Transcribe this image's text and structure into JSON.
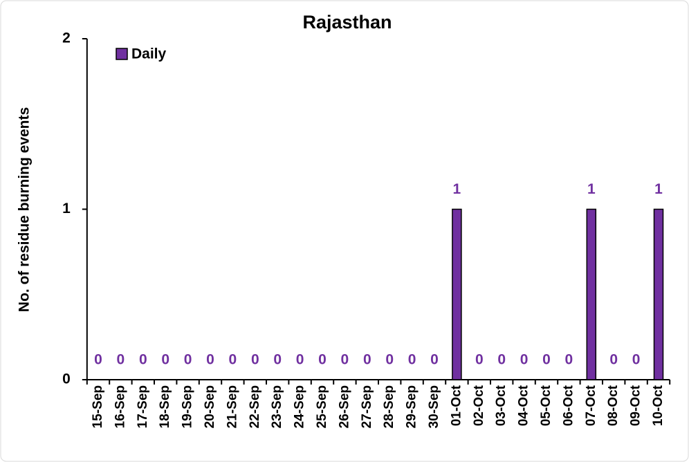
{
  "chart_data": {
    "type": "bar",
    "title": "Rajasthan",
    "y_label": "No. of residue burning events",
    "categories": [
      "15-Sep",
      "16-Sep",
      "17-Sep",
      "18-Sep",
      "19-Sep",
      "20-Sep",
      "21-Sep",
      "22-Sep",
      "23-Sep",
      "24-Sep",
      "25-Sep",
      "26-Sep",
      "27-Sep",
      "28-Sep",
      "29-Sep",
      "30-Sep",
      "01-Oct",
      "02-Oct",
      "03-Oct",
      "04-Oct",
      "05-Oct",
      "06-Oct",
      "07-Oct",
      "08-Oct",
      "09-Oct",
      "10-Oct"
    ],
    "series": [
      {
        "name": "Daily",
        "color": "#7030a0",
        "values": [
          0,
          0,
          0,
          0,
          0,
          0,
          0,
          0,
          0,
          0,
          0,
          0,
          0,
          0,
          0,
          0,
          1,
          0,
          0,
          0,
          0,
          0,
          1,
          0,
          0,
          1
        ]
      }
    ],
    "ylim": [
      0,
      2
    ],
    "yticks": [
      0,
      1,
      2
    ],
    "legend": "upper left",
    "data_labels": true
  }
}
